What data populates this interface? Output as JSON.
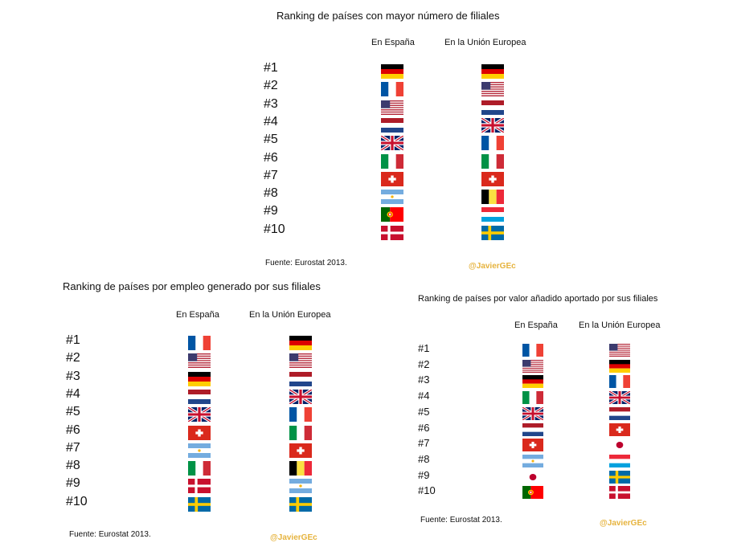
{
  "panels": [
    {
      "title": "Ranking de países con mayor número de filiales",
      "col_spain": "En España",
      "col_eu": "En la Unión Europea",
      "ranks": [
        "#1",
        "#2",
        "#3",
        "#4",
        "#5",
        "#6",
        "#7",
        "#8",
        "#9",
        "#10"
      ],
      "spain_flags": [
        "germany-flag",
        "france-flag",
        "usa-flag",
        "netherlands-flag",
        "uk-flag",
        "italy-flag",
        "switzerland-flag",
        "argentina-flag",
        "portugal-flag",
        "denmark-flag"
      ],
      "eu_flags": [
        "germany-flag",
        "usa-flag",
        "netherlands-flag",
        "uk-flag",
        "france-flag",
        "italy-flag",
        "switzerland-flag",
        "belgium-flag",
        "luxembourg-flag",
        "sweden-flag"
      ],
      "source": "Fuente: Eurostat 2013.",
      "handle": "@JavierGEc"
    },
    {
      "title": "Ranking de países por empleo generado por sus filiales",
      "col_spain": "En España",
      "col_eu": "En la Unión Europea",
      "ranks": [
        "#1",
        "#2",
        "#3",
        "#4",
        "#5",
        "#6",
        "#7",
        "#8",
        "#9",
        "#10"
      ],
      "spain_flags": [
        "france-flag",
        "usa-flag",
        "germany-flag",
        "netherlands-flag",
        "uk-flag",
        "switzerland-flag",
        "argentina-flag",
        "italy-flag",
        "denmark-flag",
        "sweden-flag"
      ],
      "eu_flags": [
        "germany-flag",
        "usa-flag",
        "netherlands-flag",
        "uk-flag",
        "france-flag",
        "italy-flag",
        "switzerland-flag",
        "belgium-flag",
        "argentina-flag",
        "sweden-flag"
      ],
      "source": "Fuente: Eurostat 2013.",
      "handle": "@JavierGEc"
    },
    {
      "title": "Ranking de países por valor añadido aportado por sus filiales",
      "col_spain": "En España",
      "col_eu": "En la Unión Europea",
      "ranks": [
        "#1",
        "#2",
        "#3",
        "#4",
        "#5",
        "#6",
        "#7",
        "#8",
        "#9",
        "#10"
      ],
      "spain_flags": [
        "france-flag",
        "usa-flag",
        "germany-flag",
        "italy-flag",
        "uk-flag",
        "netherlands-flag",
        "switzerland-flag",
        "argentina-flag",
        "japan-flag",
        "portugal-flag"
      ],
      "eu_flags": [
        "usa-flag",
        "germany-flag",
        "france-flag",
        "uk-flag",
        "netherlands-flag",
        "switzerland-flag",
        "japan-flag",
        "luxembourg-flag",
        "sweden-flag",
        "denmark-flag"
      ],
      "source": "Fuente: Eurostat 2013.",
      "handle": "@JavierGEc"
    }
  ]
}
